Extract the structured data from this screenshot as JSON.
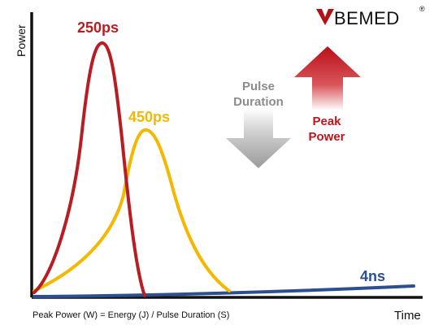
{
  "brand": {
    "logo_text": "BEMED",
    "registered_mark": "®",
    "accent_color": "#b01218"
  },
  "axes": {
    "y_label": "Power",
    "x_label": "Time"
  },
  "curves": [
    {
      "label": "250ps",
      "color": "#b81d24"
    },
    {
      "label": "450ps",
      "color": "#f4b800"
    },
    {
      "label": "4ns",
      "color": "#2e4f8f"
    }
  ],
  "arrows": {
    "pulse_duration": {
      "line1": "Pulse",
      "line2": "Duration",
      "direction": "down",
      "color": "#9b9b9b"
    },
    "peak_power": {
      "line1": "Peak",
      "line2": "Power",
      "direction": "up",
      "color": "#c0141c"
    }
  },
  "formula": "Peak Power (W) = Energy (J) / Pulse Duration (S)"
}
